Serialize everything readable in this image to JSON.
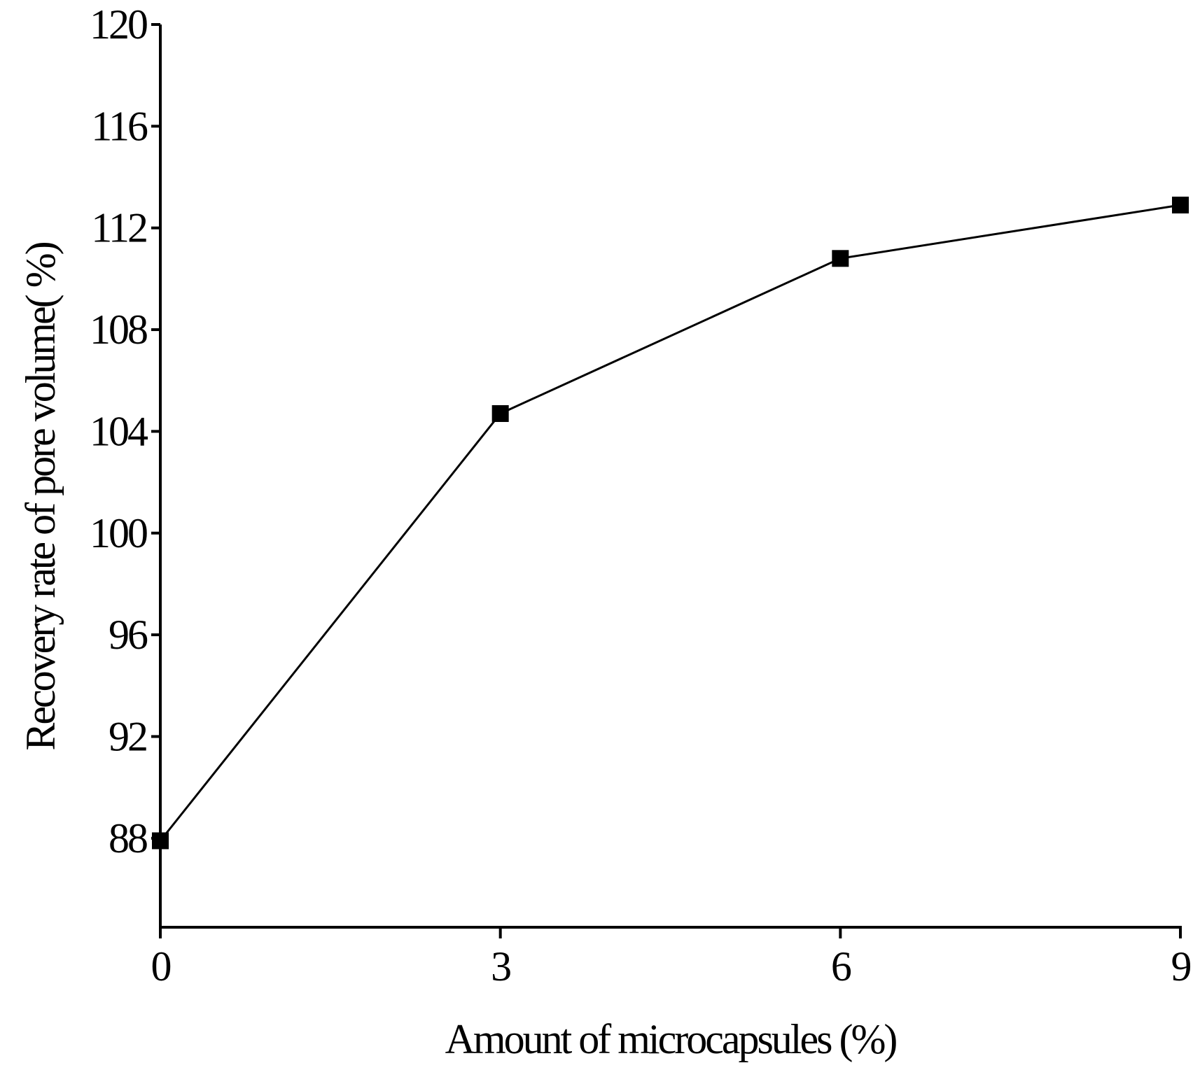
{
  "chart_data": {
    "type": "line",
    "title": "",
    "xlabel": "Amount of microcapsules (%)",
    "ylabel": "Recovery rate of pore volume(  %)",
    "xlim": [
      0,
      9
    ],
    "ylim": [
      84.5,
      120
    ],
    "x_ticks": [
      0,
      3,
      6,
      9
    ],
    "y_ticks": [
      88,
      92,
      96,
      100,
      104,
      108,
      112,
      116,
      120
    ],
    "x_tick_labels": [
      "0",
      "3",
      "6",
      "9"
    ],
    "y_tick_labels": [
      "88",
      "92",
      "96",
      "100",
      "104",
      "108",
      "112",
      "116",
      "120"
    ],
    "grid": false,
    "legend": "none",
    "series": [
      {
        "name": "Recovery rate of pore volume",
        "marker": "square",
        "color": "#000000",
        "x": [
          0,
          3,
          6,
          9
        ],
        "values": [
          87.9,
          104.7,
          110.8,
          112.9
        ]
      }
    ]
  }
}
